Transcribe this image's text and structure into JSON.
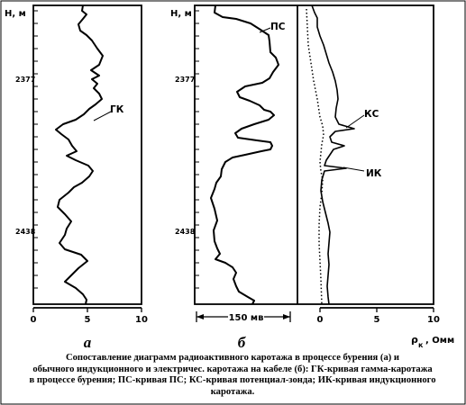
{
  "panel_a": {
    "depth_axis_label": "H, м",
    "depth_tick_upper": "2377",
    "depth_tick_lower": "2438",
    "curve_label": "ГК",
    "scale_ticks": [
      "0",
      "5",
      "10"
    ],
    "letter": "а"
  },
  "panel_b": {
    "depth_axis_label": "H, м",
    "depth_tick_upper": "2377",
    "depth_tick_lower": "2438",
    "curve_label": "ПС",
    "scale_label": "150 мв",
    "letter": "б"
  },
  "panel_c": {
    "curve_label_ks": "КС",
    "curve_label_ik": "ИК",
    "scale_ticks": [
      "0",
      "5",
      "10"
    ],
    "axis_symbol": "ρ",
    "axis_subscript": "к",
    "axis_unit": ", Омм"
  },
  "caption": [
    "Сопоставление диаграмм радиоактивного каротажа в процессе бурения (а) и",
    "обычного индукционного и электричес. каротажа на кабеле (б): ГК-кривая гамма-каротажа",
    "в процессе бурения; ПС-кривая ПС; КС-кривая потенциал-зонда; ИК-кривая индукционного",
    "каротажа."
  ]
}
